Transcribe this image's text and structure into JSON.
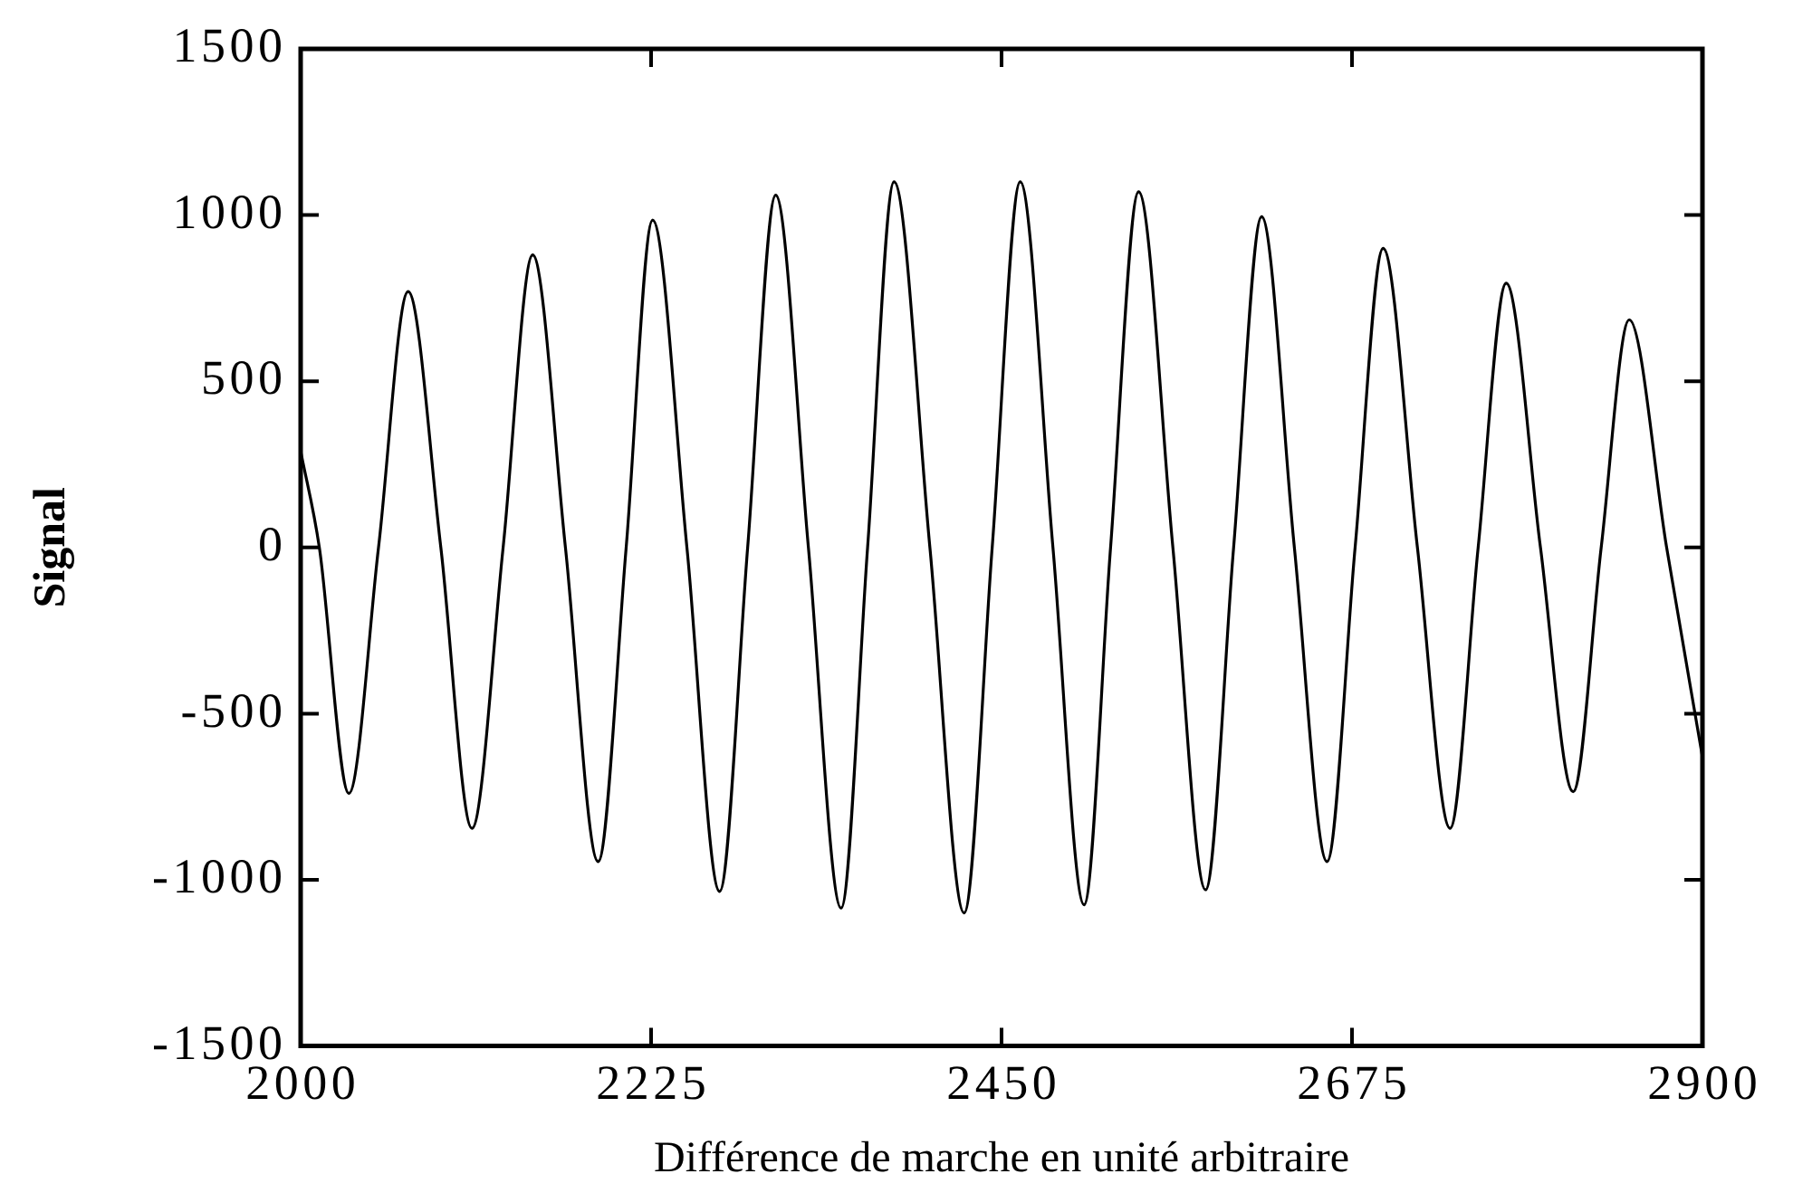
{
  "chart_data": {
    "type": "line",
    "xlabel": "Différence de marche en unité arbitraire",
    "ylabel": "Signal",
    "xlim": [
      2000,
      2900
    ],
    "xticks": [
      2000,
      2225,
      2450,
      2675,
      2900
    ],
    "ylim": [
      -1500,
      1500
    ],
    "yticks": [
      -1500,
      -1000,
      -500,
      0,
      500,
      1000,
      1500
    ],
    "grid": false,
    "legend": false,
    "marker": "none",
    "line_style": "solid",
    "series": [
      {
        "color": "#000000",
        "x": [
          2000,
          2012,
          2031,
          2050,
          2069,
          2090,
          2110,
          2130,
          2149,
          2170,
          2191,
          2209,
          2226,
          2248,
          2269,
          2287,
          2305,
          2326,
          2347,
          2364,
          2381,
          2404,
          2426,
          2444,
          2462,
          2483,
          2503,
          2520,
          2538,
          2560,
          2581,
          2599,
          2617,
          2638,
          2659,
          2677,
          2695,
          2717,
          2738,
          2756,
          2774,
          2796,
          2817,
          2835,
          2853,
          2877,
          2900
        ],
        "values": [
          290,
          0,
          -740,
          0,
          770,
          0,
          -845,
          0,
          880,
          0,
          -945,
          0,
          985,
          0,
          -1035,
          0,
          1060,
          0,
          -1085,
          0,
          1100,
          0,
          -1100,
          0,
          1100,
          0,
          -1075,
          0,
          1070,
          0,
          -1030,
          0,
          995,
          0,
          -945,
          0,
          900,
          0,
          -845,
          0,
          795,
          0,
          -735,
          0,
          685,
          0,
          -630
        ]
      }
    ]
  }
}
